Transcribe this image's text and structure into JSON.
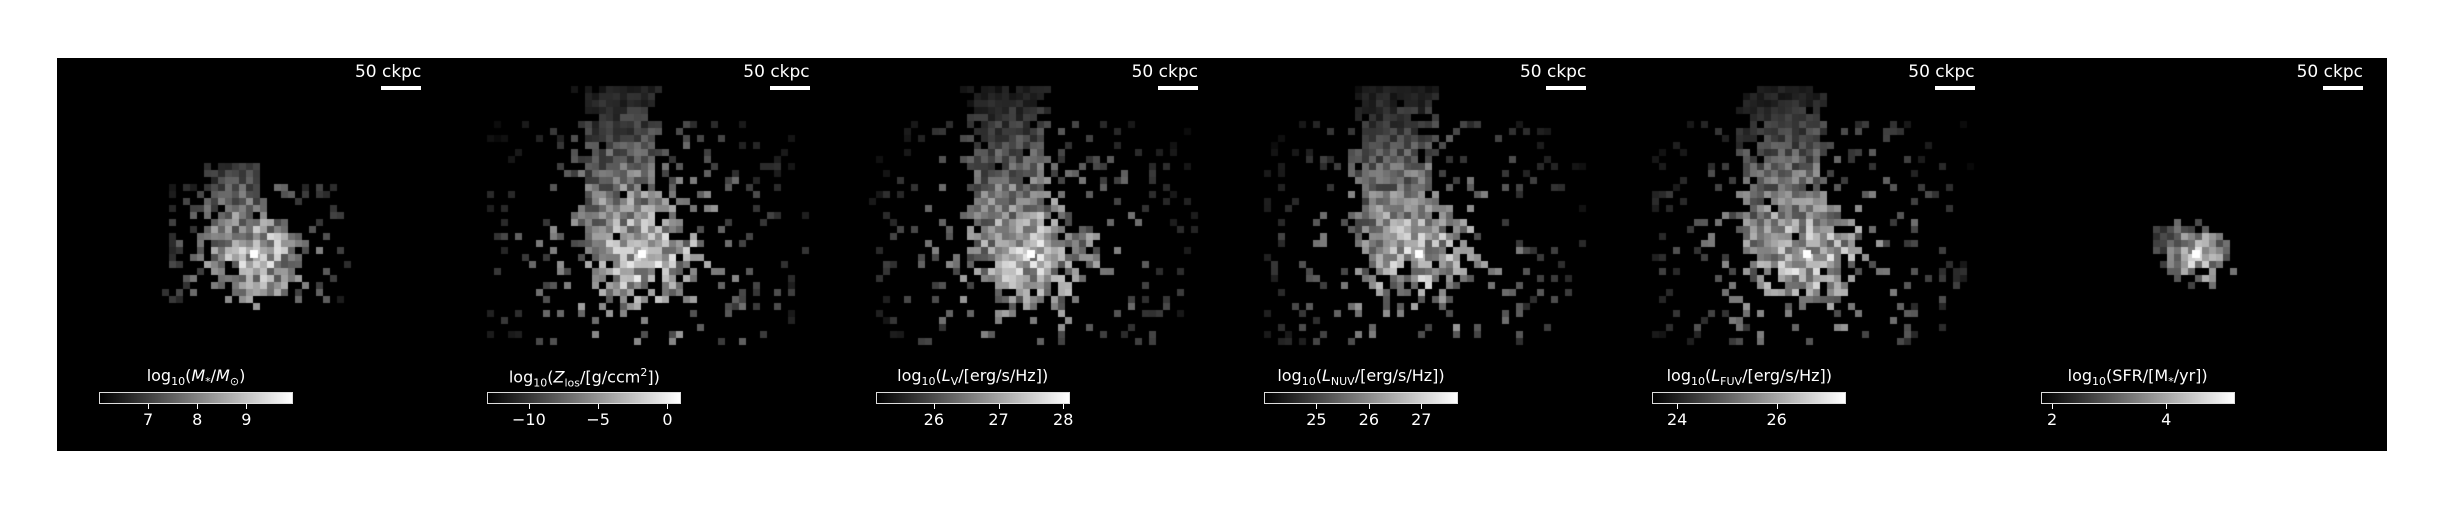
{
  "figure": {
    "panels": [
      {
        "id": "stellar-mass",
        "scale_label": "50 ckpc",
        "cbar_html": "log<sub>10</sub>(<i>M</i><sub>*</sub>/<i>M</i><sub>⊙</sub>)",
        "cbar_range": [
          6.0,
          9.95
        ],
        "ticks": [
          7,
          8,
          9
        ],
        "tick_labels": [
          "7",
          "8",
          "9"
        ],
        "spread": 0.55,
        "concentration": 0.9,
        "peak": 1.0
      },
      {
        "id": "metallicity",
        "scale_label": "50 ckpc",
        "cbar_html": "log<sub>10</sub>(<i>Z</i><sub>los</sub>/[g/ccm<sup>2</sup>])",
        "cbar_range": [
          -13.0,
          1.0
        ],
        "ticks": [
          -10,
          -5,
          0
        ],
        "tick_labels": [
          "−10",
          "−5",
          "0"
        ],
        "spread": 1.0,
        "concentration": 0.55,
        "peak": 1.0
      },
      {
        "id": "v-luminosity",
        "scale_label": "50 ckpc",
        "cbar_html": "log<sub>10</sub>(<i>L</i><sub>V</sub>/[erg/s/Hz])",
        "cbar_range": [
          25.1,
          28.1
        ],
        "ticks": [
          26,
          27,
          28
        ],
        "tick_labels": [
          "26",
          "27",
          "28"
        ],
        "spread": 1.0,
        "concentration": 0.6,
        "peak": 0.95
      },
      {
        "id": "nuv-luminosity",
        "scale_label": "50 ckpc",
        "cbar_html": "log<sub>10</sub>(<i>L</i><sub>NUV</sub>/[erg/s/Hz])",
        "cbar_range": [
          24.0,
          27.7
        ],
        "ticks": [
          25,
          26,
          27
        ],
        "tick_labels": [
          "25",
          "26",
          "27"
        ],
        "spread": 1.0,
        "concentration": 0.5,
        "peak": 0.95
      },
      {
        "id": "fuv-luminosity",
        "scale_label": "50 ckpc",
        "cbar_html": "log<sub>10</sub>(<i>L</i><sub>FUV</sub>/[erg/s/Hz])",
        "cbar_range": [
          23.5,
          27.4
        ],
        "ticks": [
          24,
          26
        ],
        "tick_labels": [
          "24",
          "26"
        ],
        "spread": 1.0,
        "concentration": 0.45,
        "peak": 0.95
      },
      {
        "id": "sfr",
        "scale_label": "50 ckpc",
        "cbar_html": "log<sub>10</sub>(SFR/[M<sub>*</sub>/yr])",
        "cbar_range": [
          1.8,
          5.2
        ],
        "ticks": [
          2,
          4
        ],
        "tick_labels": [
          "2",
          "4"
        ],
        "spread": 0.18,
        "concentration": 1.0,
        "peak": 1.0
      }
    ]
  }
}
